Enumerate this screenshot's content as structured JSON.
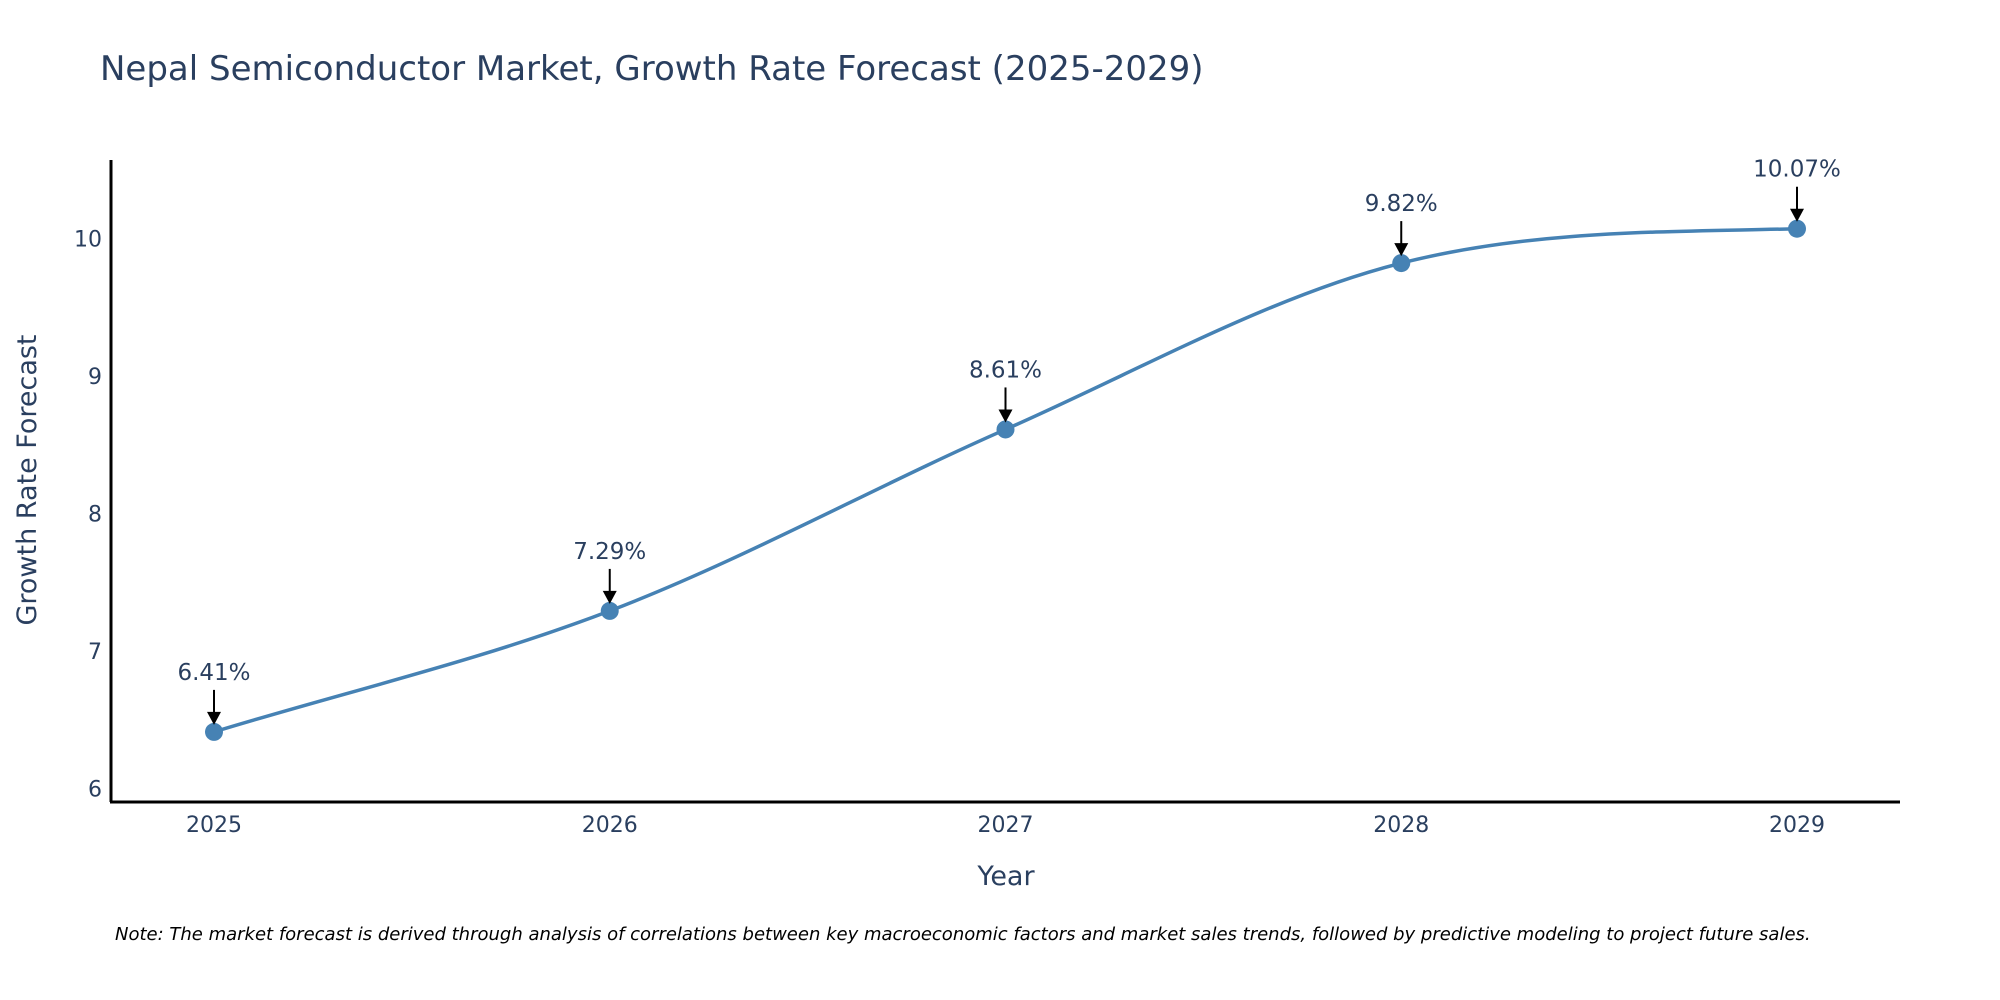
{
  "chart_data": {
    "type": "line",
    "title": "Nepal Semiconductor Market, Growth Rate Forecast (2025-2029)",
    "xlabel": "Year",
    "ylabel": "Growth Rate Forecast",
    "categories": [
      "2025",
      "2026",
      "2027",
      "2028",
      "2029"
    ],
    "series": [
      {
        "name": "Growth Rate Forecast",
        "values": [
          6.41,
          7.29,
          8.61,
          9.82,
          10.07
        ]
      }
    ],
    "data_labels": [
      "6.41%",
      "7.29%",
      "8.61%",
      "9.82%",
      "10.07%"
    ],
    "yticks": [
      6,
      7,
      8,
      9,
      10
    ],
    "ylim": [
      5.9,
      10.57
    ],
    "grid": false,
    "line_shape": "spline",
    "note": "Note: The market forecast is derived through analysis of correlations between key macroeconomic factors and market sales trends, followed by predictive modeling to project future sales."
  },
  "colors": {
    "line": "#4682b4",
    "marker": "#4682b4",
    "text": "#2a3f5f",
    "axis": "#000000",
    "arrow": "#000000"
  }
}
